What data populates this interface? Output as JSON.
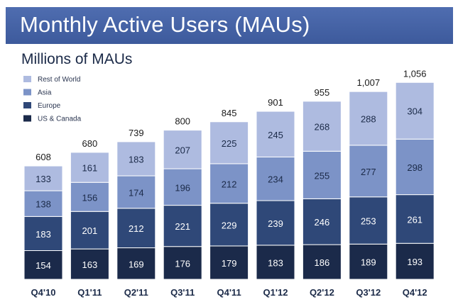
{
  "header": {
    "title": "Monthly Active Users (MAUs)"
  },
  "chart_data": {
    "type": "bar",
    "stacked": true,
    "title": "Millions of MAUs",
    "xlabel": "",
    "ylabel": "",
    "categories": [
      "Q4'10",
      "Q1'11",
      "Q2'11",
      "Q3'11",
      "Q4'11",
      "Q1'12",
      "Q2'12",
      "Q3'12",
      "Q4'12"
    ],
    "totals": [
      "608",
      "680",
      "739",
      "800",
      "845",
      "901",
      "955",
      "1,007",
      "1,056"
    ],
    "series": [
      {
        "name": "US & Canada",
        "color": "#1b2a4a",
        "text_color": "#ffffff",
        "values": [
          154,
          163,
          169,
          176,
          179,
          183,
          186,
          189,
          193
        ]
      },
      {
        "name": "Europe",
        "color": "#2f4878",
        "text_color": "#ffffff",
        "values": [
          183,
          201,
          212,
          221,
          229,
          239,
          246,
          253,
          261
        ]
      },
      {
        "name": "Asia",
        "color": "#7c93c7",
        "text_color": "#1b2a48",
        "values": [
          138,
          156,
          174,
          196,
          212,
          234,
          255,
          277,
          298
        ]
      },
      {
        "name": "Rest of World",
        "color": "#aebbe0",
        "text_color": "#1b2a48",
        "values": [
          133,
          161,
          183,
          207,
          225,
          245,
          268,
          288,
          304
        ]
      }
    ],
    "legend_order": [
      "Rest of World",
      "Asia",
      "Europe",
      "US & Canada"
    ],
    "legend_position": "top-left",
    "ylim": [
      0,
      1100
    ],
    "grid": false
  }
}
